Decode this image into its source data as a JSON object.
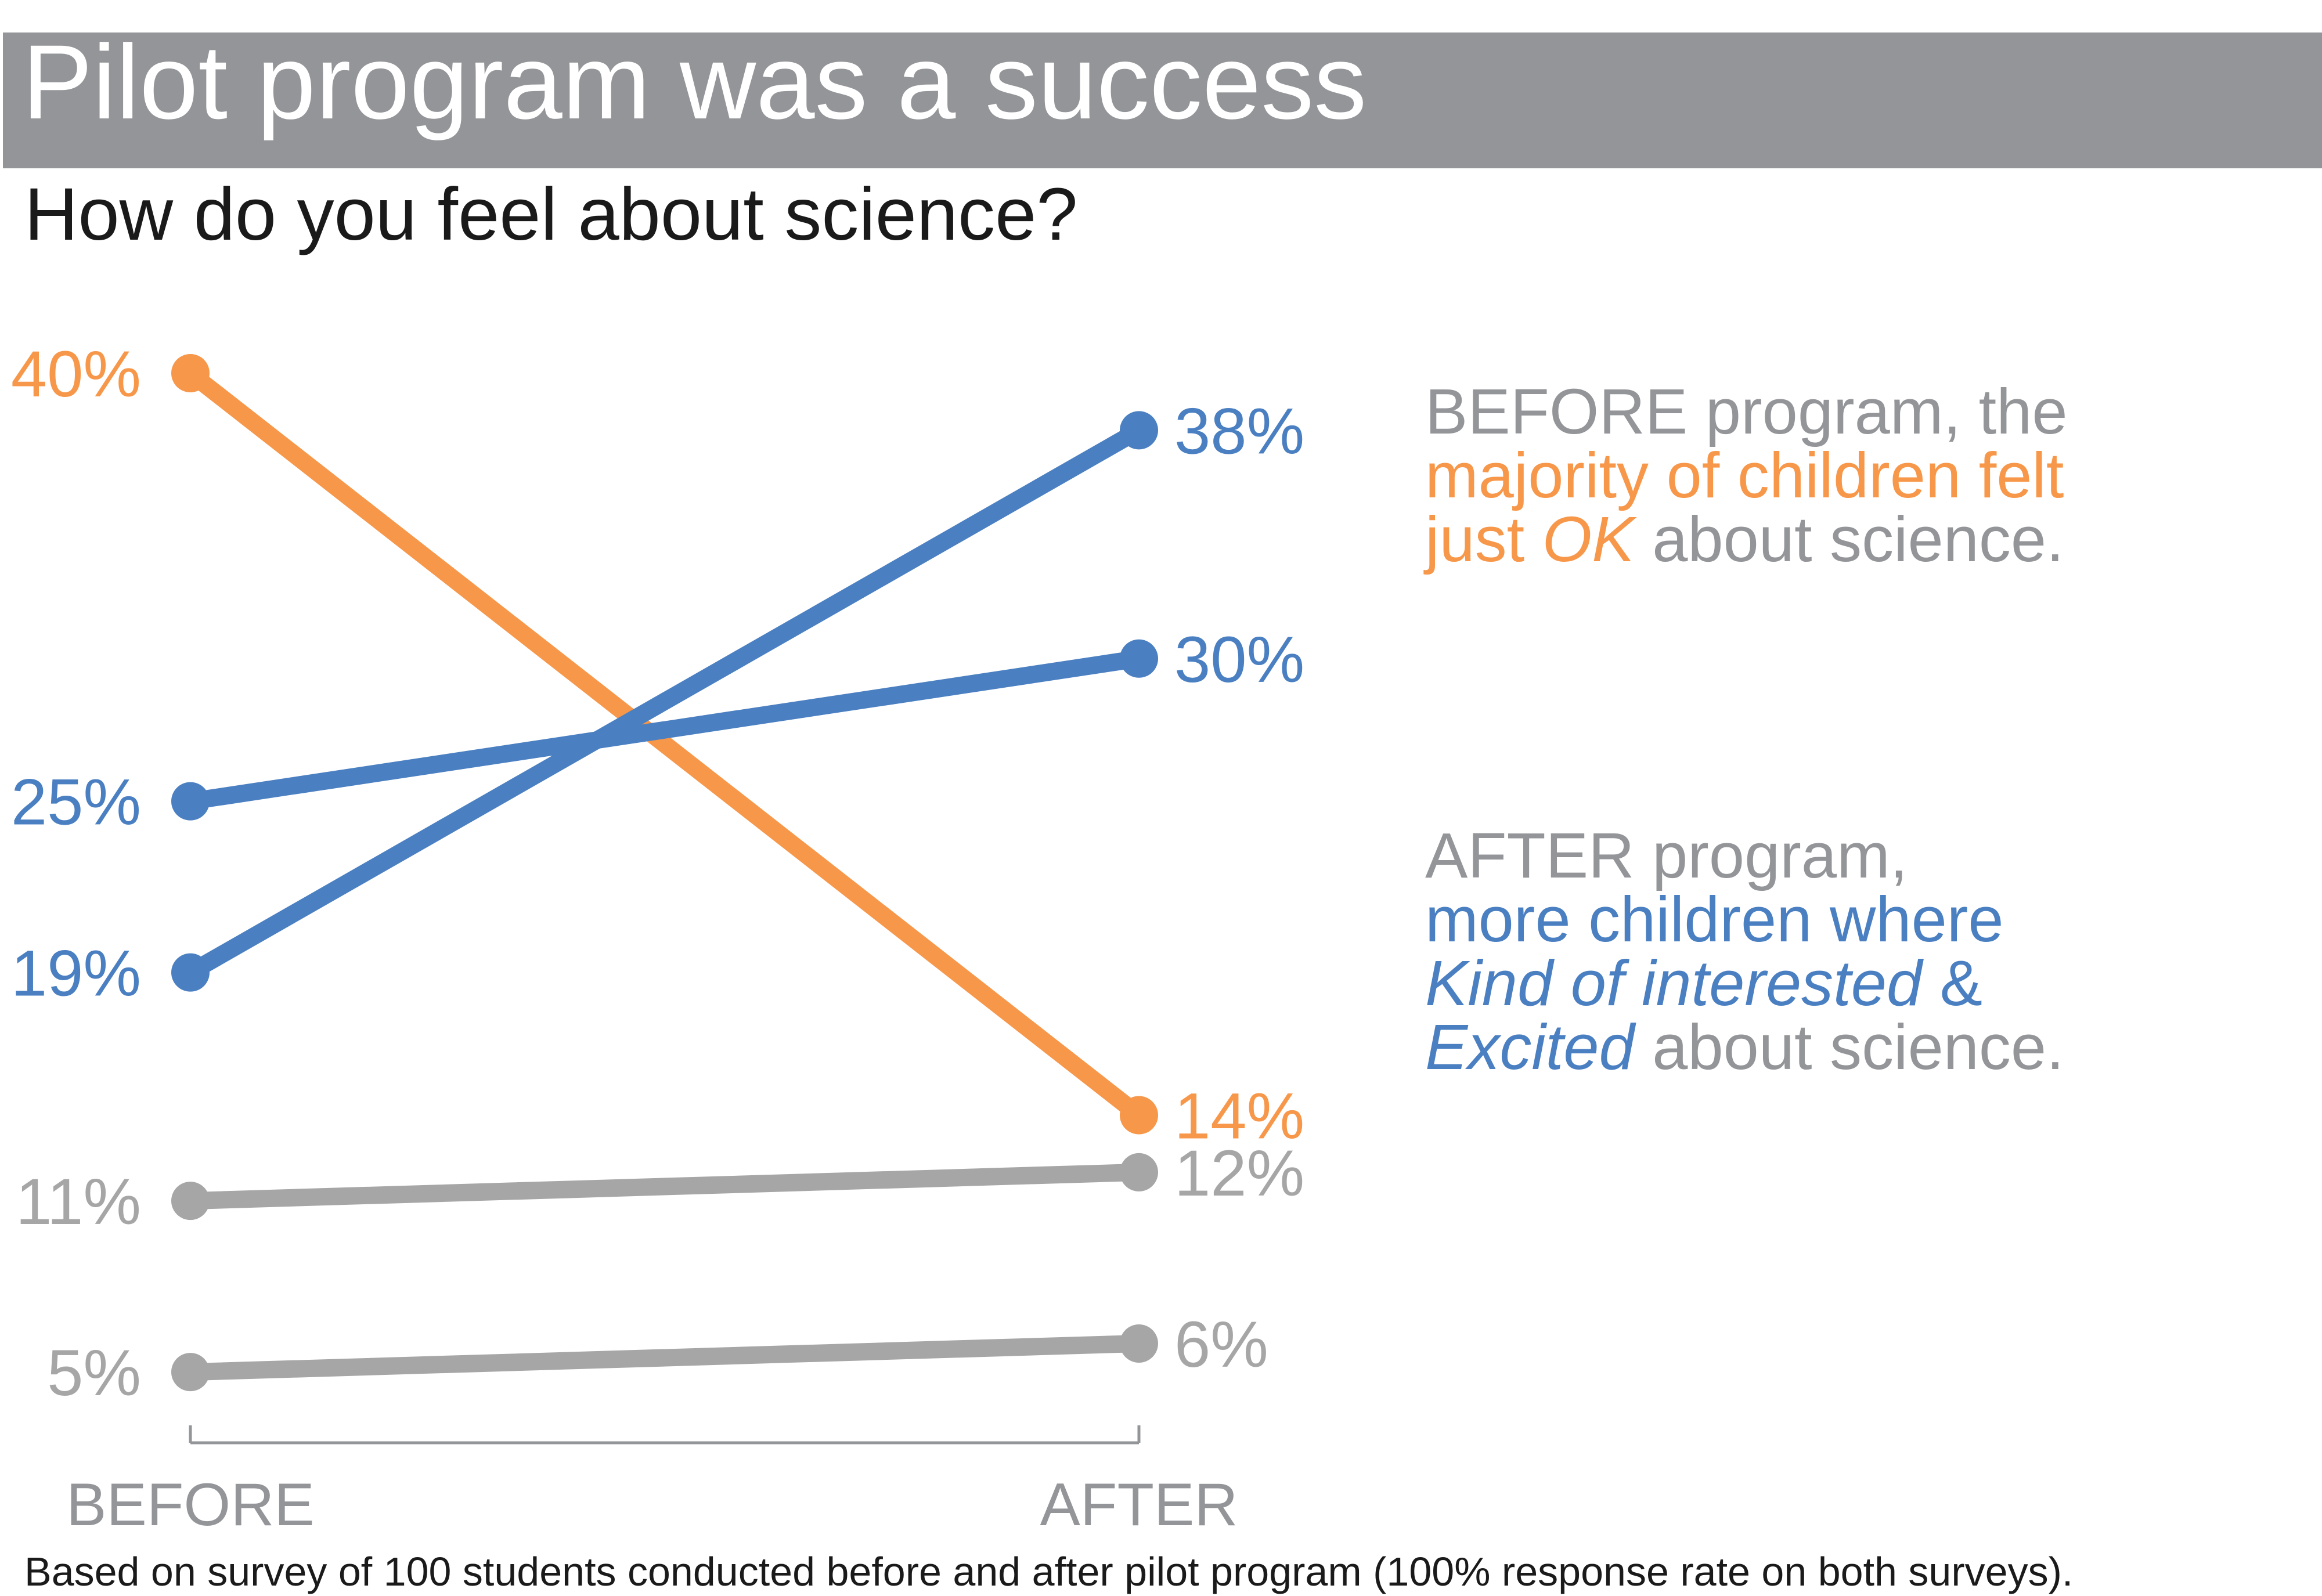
{
  "title": "Pilot program was a success",
  "subtitle": "How do you feel about science?",
  "footnote": "Based on survey of 100 students conducted before and after pilot program (100% response rate on both surveys).",
  "annotations": {
    "before": {
      "line1": "BEFORE program, the",
      "line2": "majority of children felt",
      "line3_highlight_plain": "just ",
      "line3_highlight_italic": "OK",
      "line3_rest": " about science."
    },
    "after": {
      "line1": "AFTER program,",
      "line2": "more children where",
      "line3_italic": "Kind of interested",
      "line3_rest": " &",
      "line4_italic": "Excited",
      "line4_rest": " about science."
    }
  },
  "colors": {
    "orange": "#f7974a",
    "blue": "#4a7fc1",
    "gray": "#a6a6a6",
    "axis": "#939598",
    "title_bar": "#939598"
  },
  "chart_data": {
    "type": "line",
    "categories": [
      "BEFORE",
      "AFTER"
    ],
    "series": [
      {
        "values": [
          40,
          14
        ],
        "labels": [
          "40%",
          "14%"
        ],
        "color": "#f7974a"
      },
      {
        "values": [
          19,
          38
        ],
        "labels": [
          "19%",
          "38%"
        ],
        "color": "#4a7fc1"
      },
      {
        "values": [
          25,
          30
        ],
        "labels": [
          "25%",
          "30%"
        ],
        "color": "#4a7fc1"
      },
      {
        "values": [
          11,
          12
        ],
        "labels": [
          "11%",
          "12%"
        ],
        "color": "#a6a6a6"
      },
      {
        "values": [
          5,
          6
        ],
        "labels": [
          "5%",
          "6%"
        ],
        "color": "#a6a6a6"
      }
    ],
    "ylim": [
      0,
      40
    ],
    "grid": false,
    "legend": "none"
  }
}
